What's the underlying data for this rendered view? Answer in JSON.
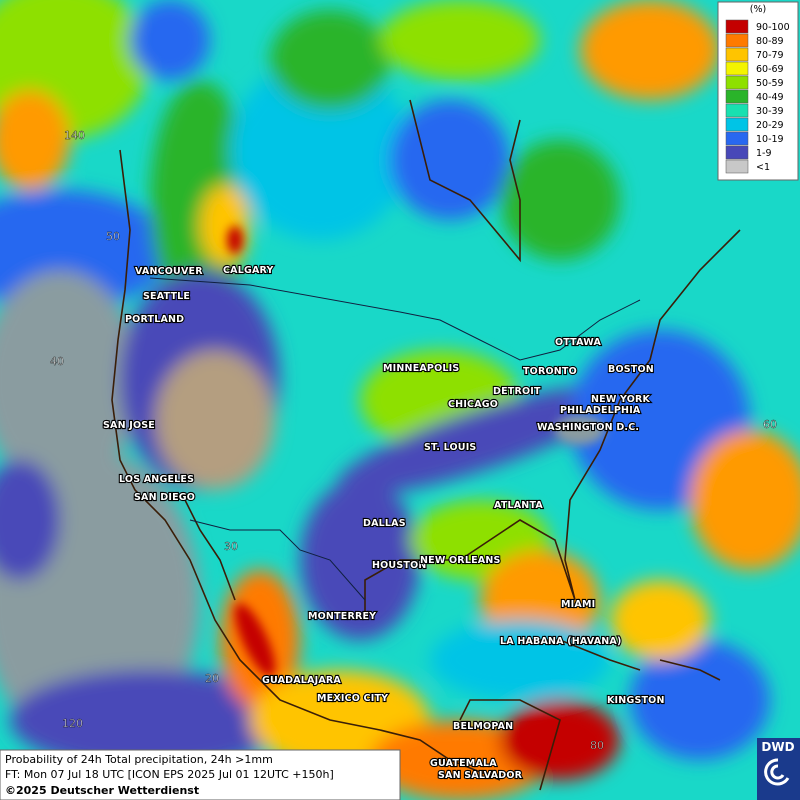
{
  "legend": {
    "title": "(%)",
    "items": [
      {
        "label": "90-100",
        "color": "#c40000"
      },
      {
        "label": "80-89",
        "color": "#ff7a00"
      },
      {
        "label": "70-79",
        "color": "#ffc400"
      },
      {
        "label": "60-69",
        "color": "#f4f400"
      },
      {
        "label": "50-59",
        "color": "#8ee000"
      },
      {
        "label": "40-49",
        "color": "#2ab42a"
      },
      {
        "label": "30-39",
        "color": "#19e0b0"
      },
      {
        "label": "20-29",
        "color": "#00c4e6"
      },
      {
        "label": "10-19",
        "color": "#2868f0"
      },
      {
        "label": "1-9",
        "color": "#4848b8"
      },
      {
        "label": "<1",
        "color": "#c8c8c8"
      }
    ]
  },
  "cities": [
    "VANCOUVER",
    "CALGARY",
    "SEATTLE",
    "PORTLAND",
    "MINNEAPOLIS",
    "OTTAWA",
    "TORONTO",
    "BOSTON",
    "DETROIT",
    "NEW YORK",
    "CHICAGO",
    "PHILADELPHIA",
    "SAN JOSE",
    "WASHINGTON D.C.",
    "ST. LOUIS",
    "LOS ANGELES",
    "SAN DIEGO",
    "ATLANTA",
    "DALLAS",
    "HOUSTON",
    "NEW ORLEANS",
    "MIAMI",
    "MONTERREY",
    "LA HABANA (HAVANA)",
    "GUADALAJARA",
    "MEXICO CITY",
    "KINGSTON",
    "BELMOPAN",
    "GUATEMALA",
    "SAN SALVADOR"
  ],
  "grid_labels": [
    140,
    50,
    40,
    30,
    20,
    120,
    60,
    80
  ],
  "footer": {
    "line1": "Probability of 24h Total precipitation, 24h >1mm",
    "line2": "FT: Mon 07 Jul 18 UTC [ICON EPS 2025 Jul 01 12UTC +150h]",
    "line3": "©2025 Deutscher Wetterdienst"
  },
  "logo": "DWD"
}
